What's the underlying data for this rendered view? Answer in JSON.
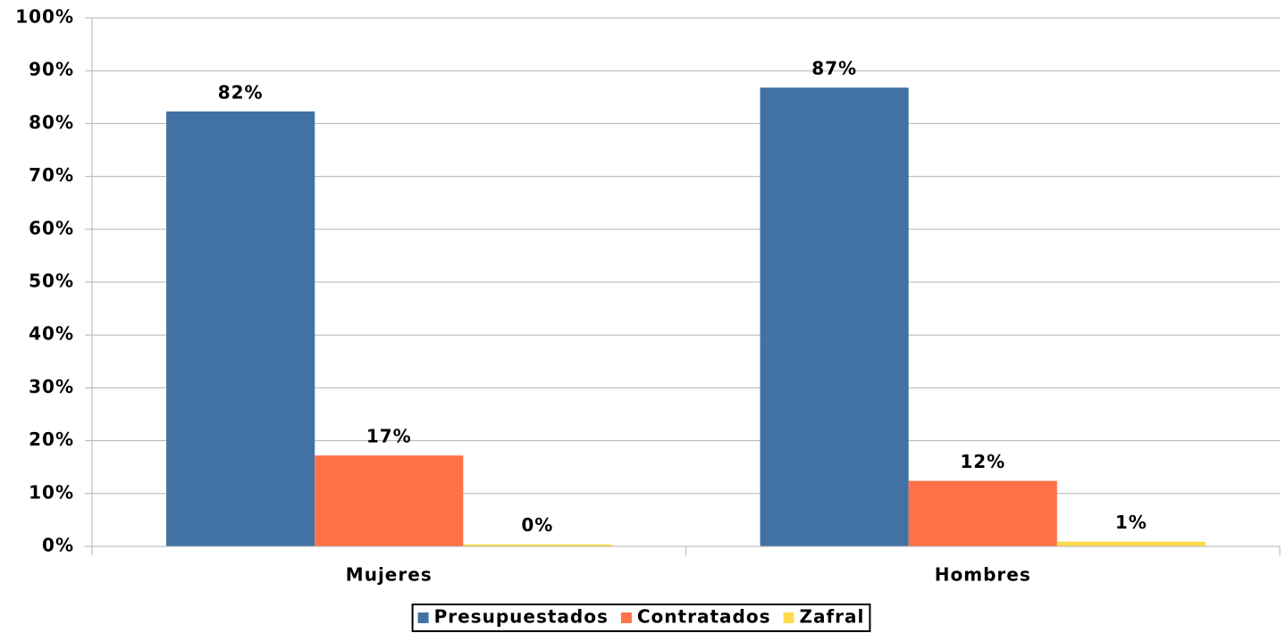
{
  "chart_data": {
    "type": "bar",
    "categories": [
      "Mujeres",
      "Hombres"
    ],
    "series": [
      {
        "name": "Presupuestados",
        "color": "#4172a3",
        "values": [
          82.3,
          86.8
        ],
        "value_labels": [
          "82%",
          "87%"
        ]
      },
      {
        "name": "Contratados",
        "color": "#ff7149",
        "values": [
          17.2,
          12.4
        ],
        "value_labels": [
          "17%",
          "12%"
        ]
      },
      {
        "name": "Zafral",
        "color": "#ffdb4d",
        "values": [
          0.4,
          0.9
        ],
        "value_labels": [
          "0%",
          "1%"
        ]
      }
    ],
    "ylim": [
      0,
      100
    ],
    "yticks": [
      {
        "value": 0,
        "label": "0%"
      },
      {
        "value": 10,
        "label": "10%"
      },
      {
        "value": 20,
        "label": "20%"
      },
      {
        "value": 30,
        "label": "30%"
      },
      {
        "value": 40,
        "label": "40%"
      },
      {
        "value": 50,
        "label": "50%"
      },
      {
        "value": 60,
        "label": "60%"
      },
      {
        "value": 70,
        "label": "70%"
      },
      {
        "value": 80,
        "label": "80%"
      },
      {
        "value": 90,
        "label": "90%"
      },
      {
        "value": 100,
        "label": "100%"
      }
    ],
    "grid": true,
    "legend": "bottom"
  }
}
